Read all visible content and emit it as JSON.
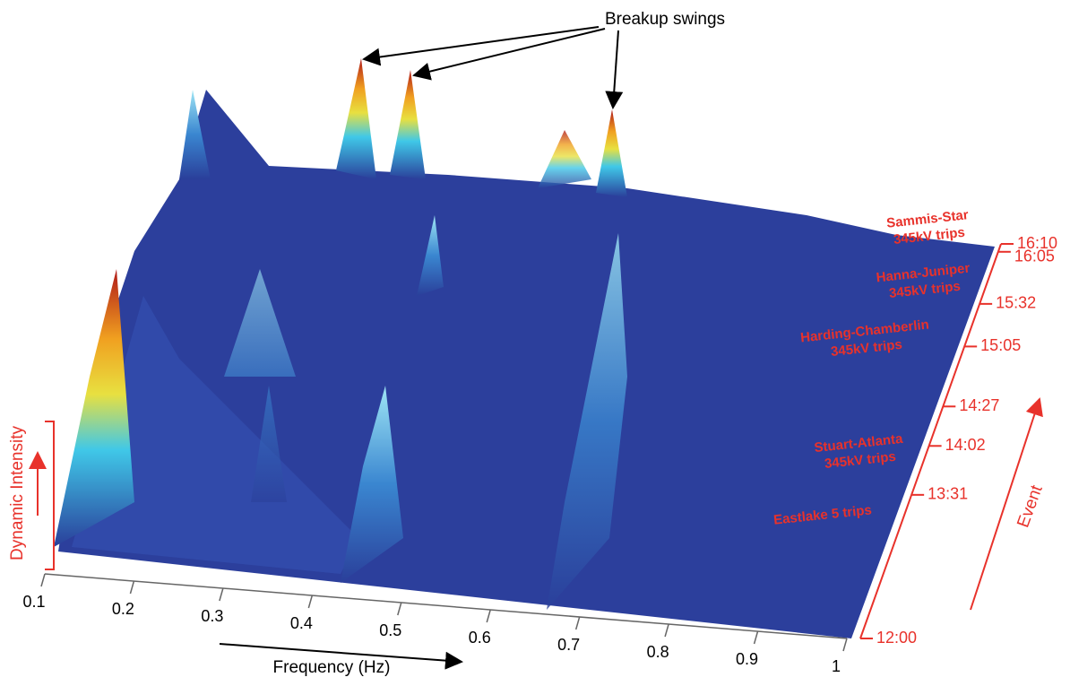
{
  "chart_data": {
    "type": "surface",
    "annotation": "Breakup swings",
    "xlabel": "Frequency (Hz)",
    "zlabel": "Dynamic Intensity",
    "tlabel": "Event",
    "xlim": [
      0.1,
      1
    ],
    "xticks": [
      0.1,
      0.2,
      0.3,
      0.4,
      0.5,
      0.6,
      0.7,
      0.8,
      0.9,
      1
    ],
    "tlim": [
      "12:00",
      "16:10"
    ],
    "tticks": [
      "12:00",
      "13:31",
      "14:02",
      "14:27",
      "15:05",
      "15:32",
      "16:05",
      "16:10"
    ],
    "events": [
      [
        "Sammis-Star",
        "345kV trips"
      ],
      [
        "Hanna-Juniper",
        "345kV trips"
      ],
      [
        "Harding-Chamberlin",
        "345kV trips"
      ],
      [
        "Stuart-Atlanta",
        "345kV trips"
      ],
      [
        "Eastlake 5 trips"
      ]
    ],
    "accent_color": "#e8322b"
  }
}
